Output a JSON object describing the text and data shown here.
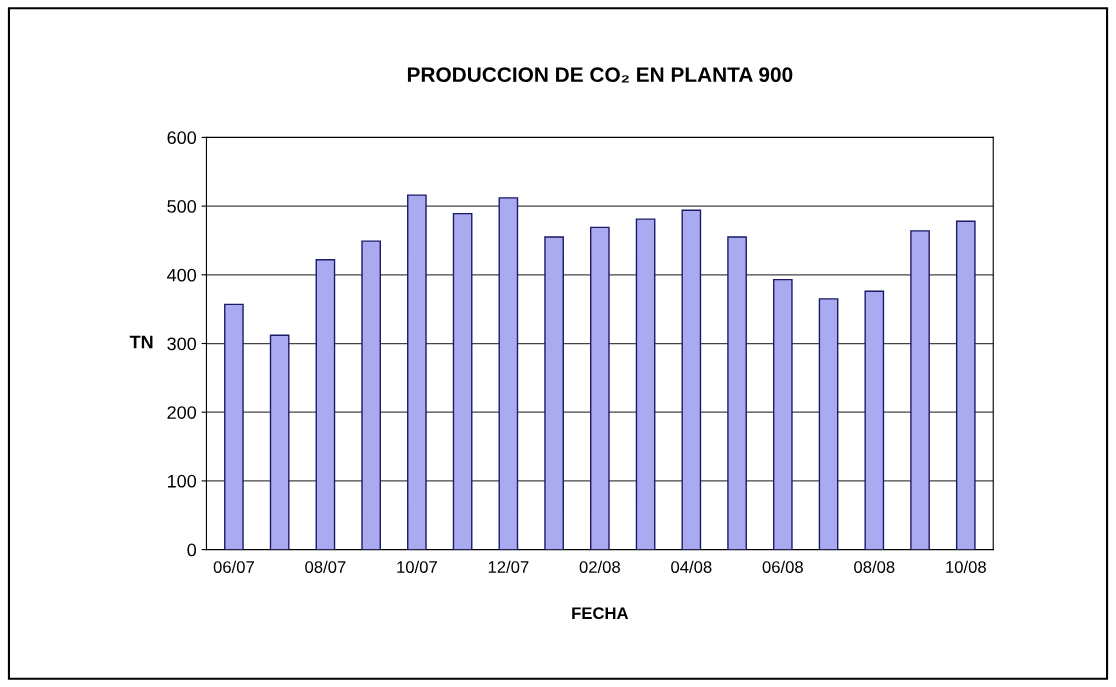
{
  "chart_data": {
    "type": "bar",
    "title": "PRODUCCION DE CO₂ EN PLANTA 900",
    "xlabel": "FECHA",
    "ylabel": "TN",
    "categories": [
      "06/07",
      null,
      "08/07",
      null,
      "10/07",
      null,
      "12/07",
      null,
      "02/08",
      null,
      "04/08",
      null,
      "06/08",
      null,
      "08/08",
      null,
      "10/08"
    ],
    "values": [
      357,
      312,
      422,
      449,
      516,
      489,
      512,
      455,
      469,
      481,
      494,
      455,
      393,
      365,
      376,
      464,
      478
    ],
    "color": "#aaaaf0",
    "ylim": [
      0,
      600
    ],
    "yticks": [
      0,
      100,
      200,
      300,
      400,
      500,
      600
    ],
    "grid": "y",
    "legend": false
  }
}
